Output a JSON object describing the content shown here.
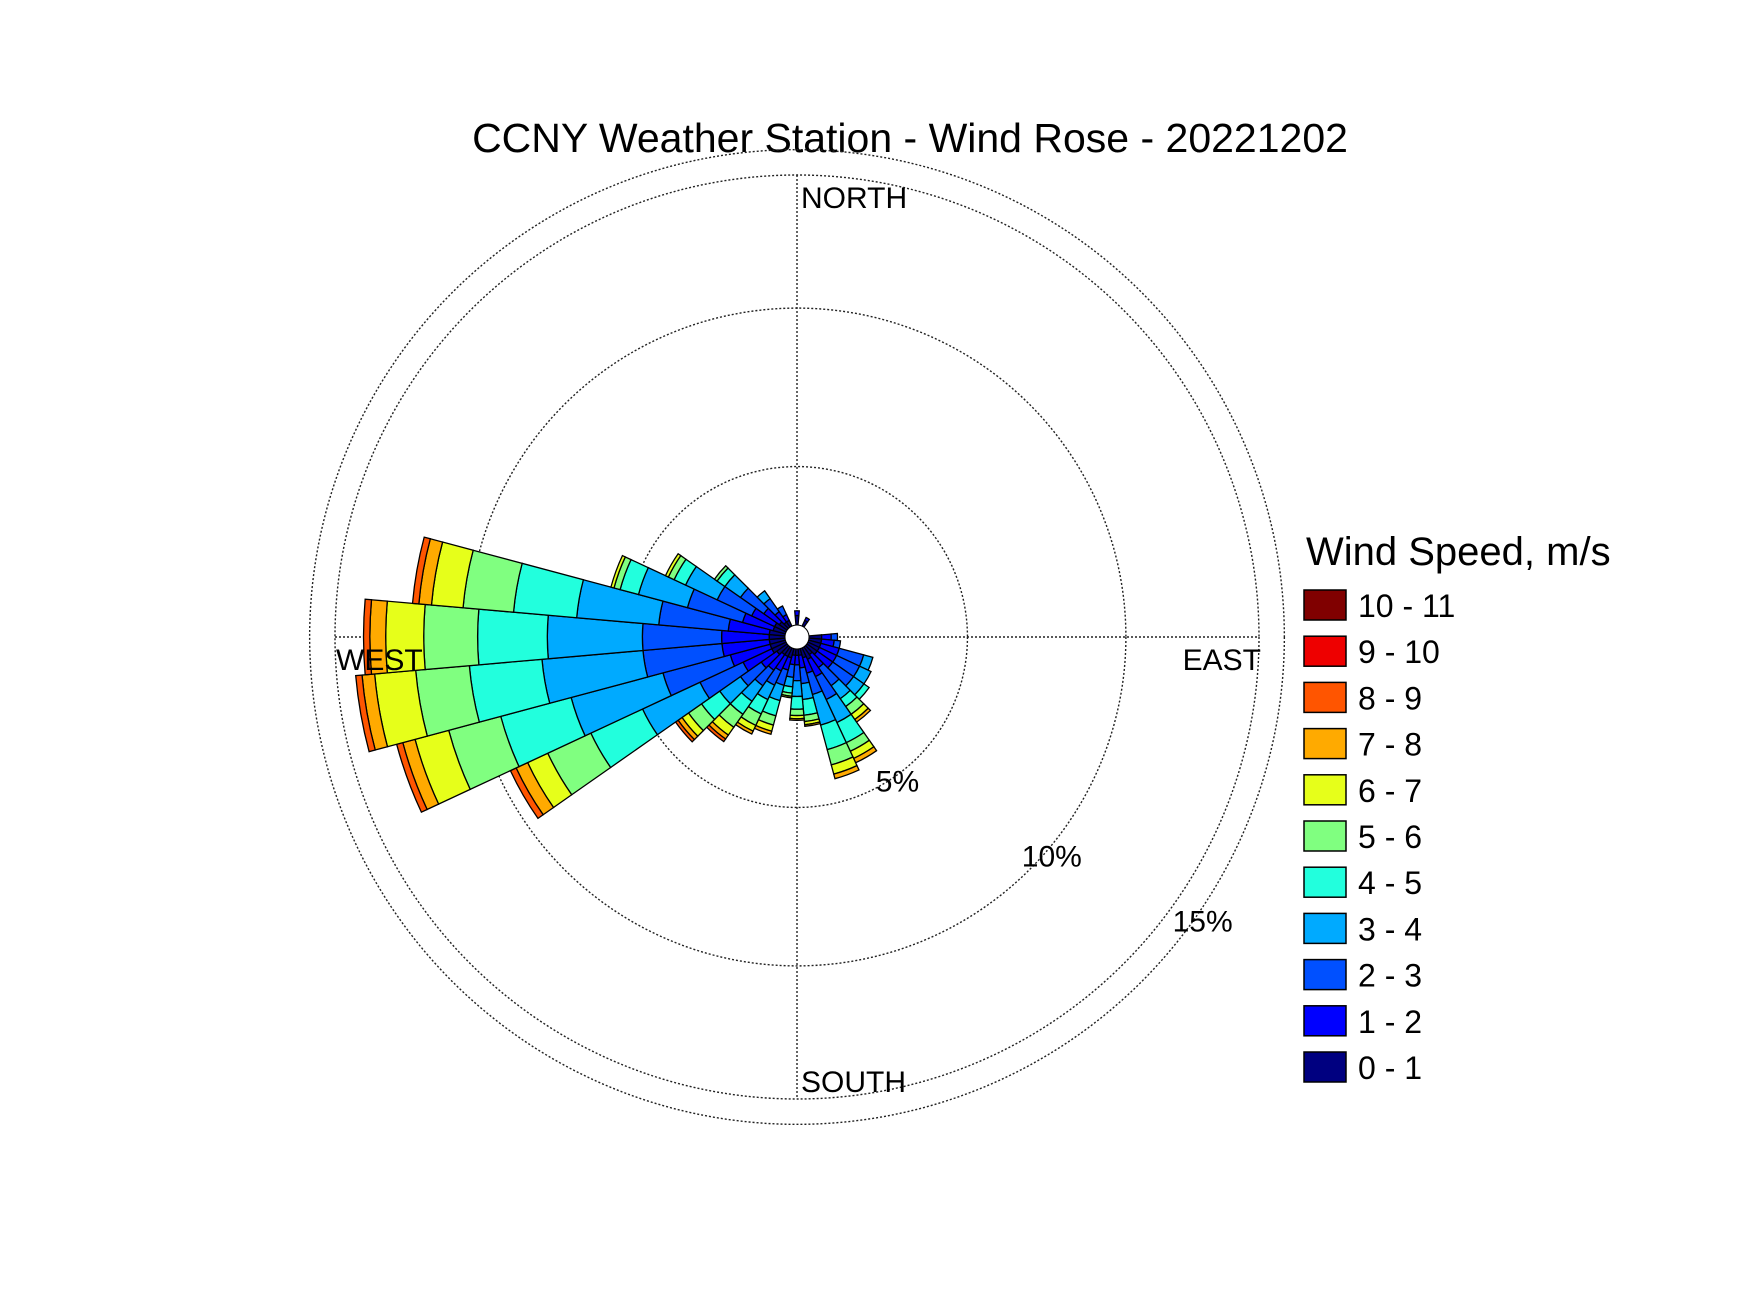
{
  "chart_data": {
    "type": "wind-rose",
    "title": "CCNY Weather Station - Wind Rose - 20221202",
    "compass": {
      "north": "NORTH",
      "east": "EAST",
      "south": "SOUTH",
      "west": "WEST"
    },
    "radial_axis": {
      "unit": "%",
      "rings": [
        5,
        10,
        15
      ],
      "ring_labels": [
        "5%",
        "10%",
        "15%"
      ],
      "max": 14.2
    },
    "grid": true,
    "sector_width_deg": 10,
    "legend": {
      "title": "Wind Speed, m/s",
      "placement": "right",
      "bins": [
        {
          "label": "0 - 1",
          "color": "#000080"
        },
        {
          "label": "1 - 2",
          "color": "#0000ff"
        },
        {
          "label": "2 - 3",
          "color": "#0050ff"
        },
        {
          "label": "3 - 4",
          "color": "#00aaff"
        },
        {
          "label": "4 - 5",
          "color": "#22ffdd"
        },
        {
          "label": "5 - 6",
          "color": "#80ff80"
        },
        {
          "label": "6 - 7",
          "color": "#e6ff1a"
        },
        {
          "label": "7 - 8",
          "color": "#ffaa00"
        },
        {
          "label": "8 - 9",
          "color": "#ff5500"
        },
        {
          "label": "9 - 10",
          "color": "#ee0000"
        },
        {
          "label": "10 - 11",
          "color": "#800000"
        }
      ]
    },
    "sectors": [
      {
        "direction_deg": 140,
        "cumulative_percent": [
          0.3,
          0.8,
          1.5,
          2.0,
          2.3,
          2.6,
          2.8,
          2.9
        ]
      },
      {
        "direction_deg": 150,
        "cumulative_percent": [
          0.4,
          1.0,
          1.8,
          2.6,
          3.3,
          3.6,
          3.85,
          4.0
        ]
      },
      {
        "direction_deg": 160,
        "cumulative_percent": [
          0.3,
          0.8,
          1.5,
          2.5,
          3.3,
          3.8,
          4.1,
          4.25
        ]
      },
      {
        "direction_deg": 170,
        "cumulative_percent": [
          0.2,
          0.6,
          1.1,
          1.6,
          2.1,
          2.3,
          2.4,
          2.45
        ]
      },
      {
        "direction_deg": 180,
        "cumulative_percent": [
          0.2,
          0.5,
          1.0,
          1.5,
          1.9,
          2.1,
          2.2,
          2.25
        ]
      },
      {
        "direction_deg": 190,
        "cumulative_percent": [
          0.2,
          0.5,
          0.9,
          1.2,
          1.4,
          1.5,
          1.55
        ]
      },
      {
        "direction_deg": 200,
        "cumulative_percent": [
          0.3,
          0.7,
          1.2,
          1.7,
          2.2,
          2.5,
          2.7,
          2.8
        ]
      },
      {
        "direction_deg": 210,
        "cumulative_percent": [
          0.3,
          0.8,
          1.3,
          1.8,
          2.3,
          2.7,
          2.9,
          3.0
        ]
      },
      {
        "direction_deg": 220,
        "cumulative_percent": [
          0.3,
          0.9,
          1.5,
          2.1,
          2.6,
          3.1,
          3.4,
          3.55,
          3.65
        ]
      },
      {
        "direction_deg": 230,
        "cumulative_percent": [
          0.4,
          1.0,
          1.8,
          2.6,
          3.3,
          3.8,
          4.05,
          4.2,
          4.3
        ]
      },
      {
        "direction_deg": 240,
        "cumulative_percent": [
          0.5,
          1.5,
          3.0,
          5.0,
          6.8,
          8.3,
          9.0,
          9.4,
          9.6
        ]
      },
      {
        "direction_deg": 250,
        "cumulative_percent": [
          0.5,
          1.8,
          4.0,
          7.0,
          9.3,
          11.0,
          12.1,
          12.5,
          12.7
        ]
      },
      {
        "direction_deg": 260,
        "cumulative_percent": [
          0.5,
          2.0,
          4.5,
          7.7,
          10.0,
          11.7,
          13.0,
          13.4,
          13.6
        ]
      },
      {
        "direction_deg": 270,
        "cumulative_percent": [
          0.5,
          2.0,
          4.5,
          7.5,
          9.7,
          11.4,
          12.6,
          13.1,
          13.3
        ]
      },
      {
        "direction_deg": 280,
        "cumulative_percent": [
          0.5,
          1.8,
          4.0,
          6.6,
          8.6,
          10.2,
          11.2,
          11.6,
          11.8
        ]
      },
      {
        "direction_deg": 290,
        "cumulative_percent": [
          0.4,
          1.4,
          3.2,
          4.8,
          5.4,
          5.6,
          5.7
        ]
      },
      {
        "direction_deg": 300,
        "cumulative_percent": [
          0.4,
          1.2,
          2.4,
          3.5,
          3.9,
          4.1,
          4.2
        ]
      },
      {
        "direction_deg": 310,
        "cumulative_percent": [
          0.3,
          0.9,
          1.8,
          2.4,
          2.7,
          2.8
        ]
      },
      {
        "direction_deg": 320,
        "cumulative_percent": [
          0.2,
          0.6,
          1.1,
          1.4
        ]
      },
      {
        "direction_deg": 330,
        "cumulative_percent": [
          0.2,
          0.4,
          0.7
        ]
      },
      {
        "direction_deg": 0,
        "cumulative_percent": [
          0.3,
          0.45
        ]
      },
      {
        "direction_deg": 30,
        "cumulative_percent": [
          0.2,
          0.3
        ]
      },
      {
        "direction_deg": 90,
        "cumulative_percent": [
          0.4,
          0.7,
          0.9
        ]
      },
      {
        "direction_deg": 100,
        "cumulative_percent": [
          0.4,
          0.8,
          1.0
        ]
      },
      {
        "direction_deg": 110,
        "cumulative_percent": [
          0.4,
          1.0,
          1.8,
          2.1
        ]
      },
      {
        "direction_deg": 120,
        "cumulative_percent": [
          0.4,
          1.0,
          1.8,
          2.2
        ]
      },
      {
        "direction_deg": 130,
        "cumulative_percent": [
          0.4,
          1.0,
          1.8,
          2.2,
          2.4
        ]
      }
    ]
  }
}
